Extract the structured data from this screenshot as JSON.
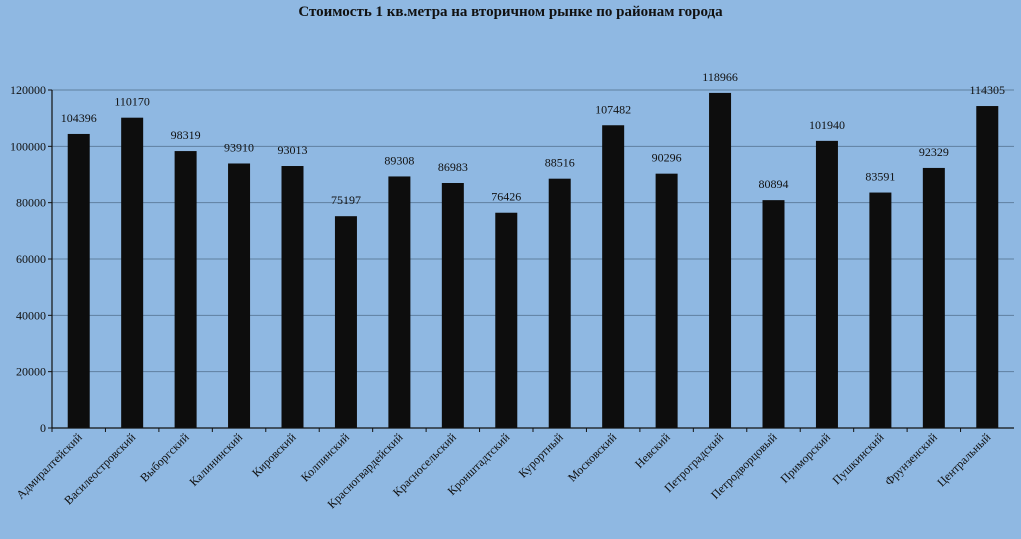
{
  "chart_data": {
    "type": "bar",
    "title": "Стоимость 1 кв.метра на вторичном  рынке по районам  города",
    "categories": [
      "Адмиралтейский",
      "Василеостровский",
      "Выборгский",
      "Калининский",
      "Кировский",
      "Колпинский",
      "Красногвардейский",
      "Красносельский",
      "Кронштадтский",
      "Курортный",
      "Московский",
      "Невский",
      "Петроградский",
      "Петродворцовый",
      "Приморский",
      "Пушкинский",
      "Фрунзенский",
      "Центральный"
    ],
    "values": [
      104396,
      110170,
      98319,
      93910,
      93013,
      75197,
      89308,
      86983,
      76426,
      88516,
      107482,
      90296,
      118966,
      80894,
      101940,
      83591,
      92329,
      114305
    ],
    "ylim": [
      0,
      120000
    ],
    "yticks": [
      0,
      20000,
      40000,
      60000,
      80000,
      100000,
      120000
    ],
    "grid": true,
    "xlabel": "",
    "ylabel": "",
    "bar_color": "#0d0d0d",
    "grid_color": "#5f7f9f",
    "background_color": "#8fb8e2"
  }
}
